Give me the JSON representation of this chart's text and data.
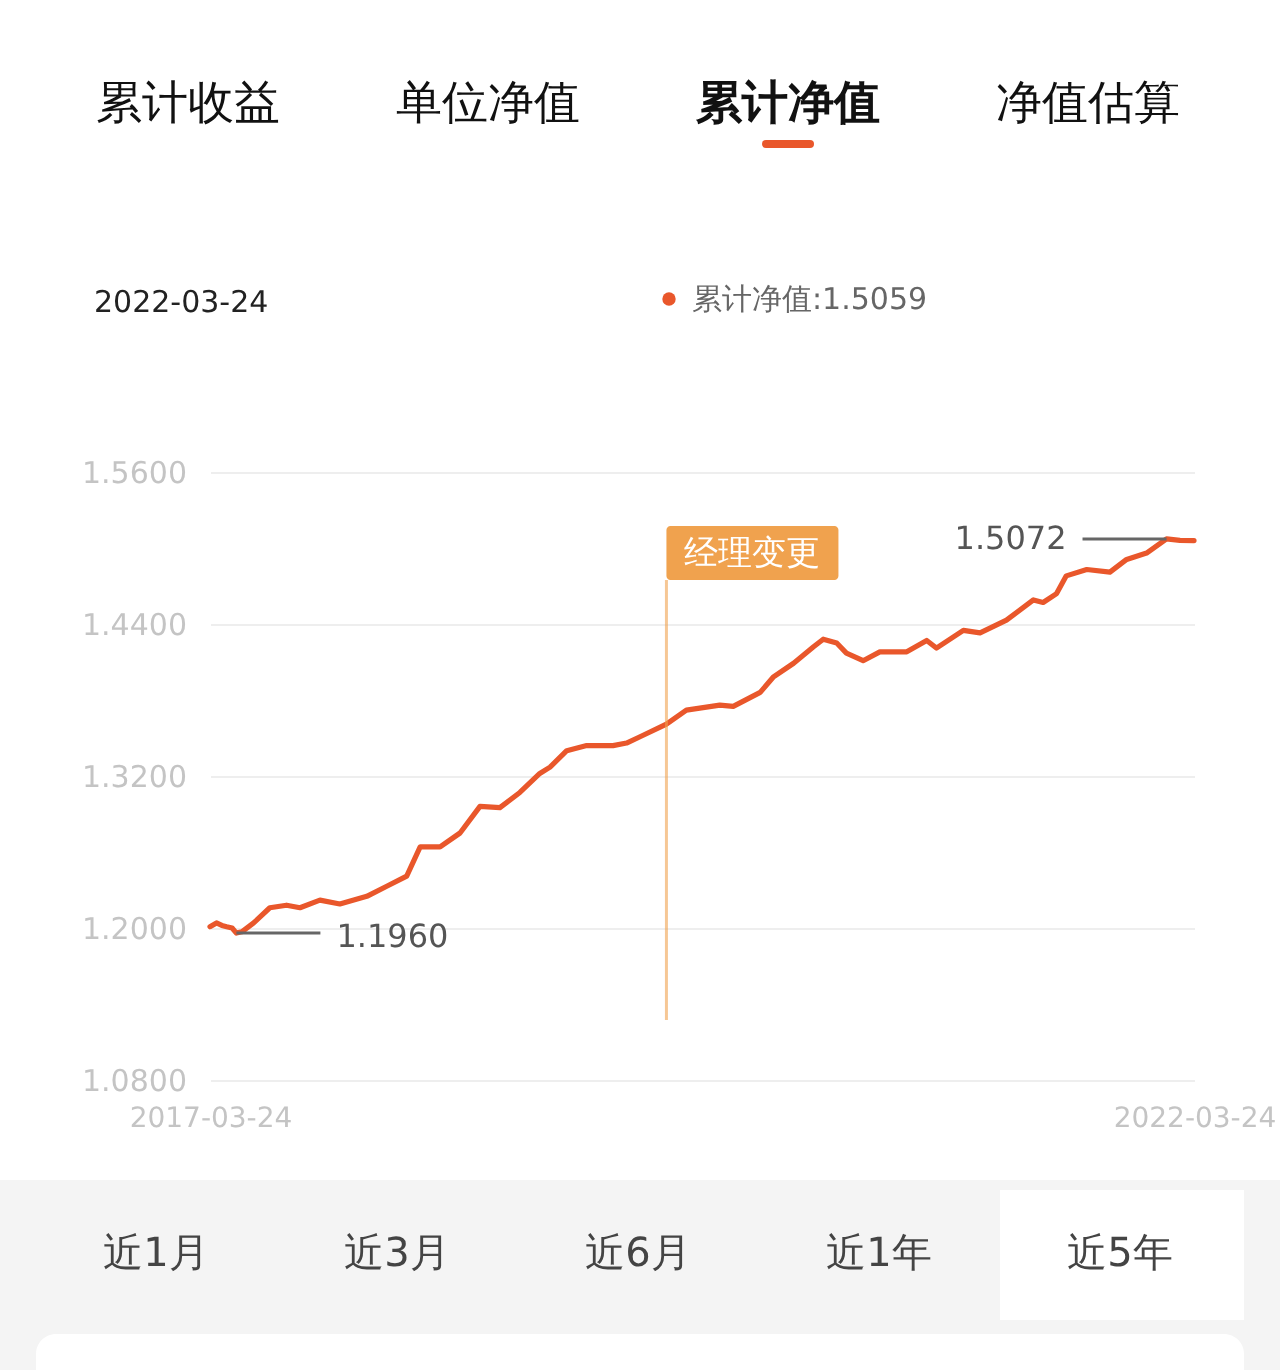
{
  "chart_data": {
    "type": "line",
    "annotations": [
      "累计收益",
      "单位净值",
      "累计净值",
      "净值估算",
      "2022-03-24",
      {
        "text": "1.5072",
        "x": "2022-02-01",
        "y": 1.5072
      },
      {
        "text": "1.1960",
        "x": "2017-05-12",
        "y": 1.196
      },
      "近1月",
      "近3月",
      "近6月",
      "近1年",
      "近5年"
    ],
    "x": [
      "2017-03-24",
      "2017-04-05",
      "2017-04-15",
      "2017-04-24",
      "2017-05-04",
      "2017-05-12",
      "2017-05-22",
      "2017-06-13",
      "2017-07-13",
      "2017-08-13",
      "2017-09-07",
      "2017-10-14",
      "2017-11-20",
      "2018-01-09",
      "2018-02-15",
      "2018-03-24",
      "2018-04-18",
      "2018-05-25",
      "2018-07-01",
      "2018-08-07",
      "2018-09-13",
      "2018-10-20",
      "2018-11-26",
      "2018-12-15",
      "2019-01-15",
      "2019-02-21",
      "2019-04-11",
      "2019-05-06",
      "2019-05-31",
      "2019-07-19",
      "2019-08-25",
      "2019-10-26",
      "2019-11-20",
      "2020-01-09",
      "2020-02-02",
      "2020-03-11",
      "2020-04-17",
      "2020-05-05",
      "2020-05-30",
      "2020-06-17",
      "2020-07-18",
      "2020-08-18",
      "2020-10-07",
      "2020-11-13",
      "2020-12-01",
      "2021-01-20",
      "2021-02-20",
      "2021-04-10",
      "2021-05-30",
      "2021-06-17",
      "2021-07-12",
      "2021-07-30",
      "2021-09-06",
      "2021-10-19",
      "2021-11-19",
      "2021-12-26",
      "2022-02-01",
      "2022-02-26",
      "2022-03-24"
    ],
    "series": [
      {
        "name": "累计净值:1.5059",
        "color": "#e9572b",
        "values": [
          1.201,
          1.204,
          1.202,
          1.201,
          1.2,
          1.196,
          1.197,
          1.204,
          1.216,
          1.218,
          1.216,
          1.222,
          1.219,
          1.225,
          1.233,
          1.241,
          1.264,
          1.264,
          1.275,
          1.296,
          1.295,
          1.307,
          1.322,
          1.327,
          1.34,
          1.344,
          1.344,
          1.346,
          1.351,
          1.361,
          1.372,
          1.376,
          1.375,
          1.386,
          1.398,
          1.409,
          1.422,
          1.428,
          1.425,
          1.417,
          1.411,
          1.418,
          1.418,
          1.427,
          1.421,
          1.435,
          1.433,
          1.443,
          1.459,
          1.457,
          1.464,
          1.478,
          1.483,
          1.481,
          1.491,
          1.496,
          1.5072,
          1.506,
          1.5059
        ]
      }
    ],
    "xlim": [
      "2017-03-24",
      "2022-03-24"
    ],
    "xticks": [
      "2017-03-24",
      "2022-03-24"
    ],
    "ylim": [
      1.08,
      1.56
    ],
    "yticks": [
      {
        "value": 1.08,
        "label": "1.0800"
      },
      {
        "value": 1.2,
        "label": "1.2000"
      },
      {
        "value": 1.32,
        "label": "1.3200"
      },
      {
        "value": 1.44,
        "label": "1.4400"
      },
      {
        "value": 1.56,
        "label": "1.5600"
      }
    ],
    "grid": "y",
    "line_style": "solid",
    "legend": "top",
    "ref_lines": [
      {
        "axis": "x",
        "value": "2019-07-19",
        "label": "经理变更",
        "color": "#f0a24e"
      }
    ]
  }
}
